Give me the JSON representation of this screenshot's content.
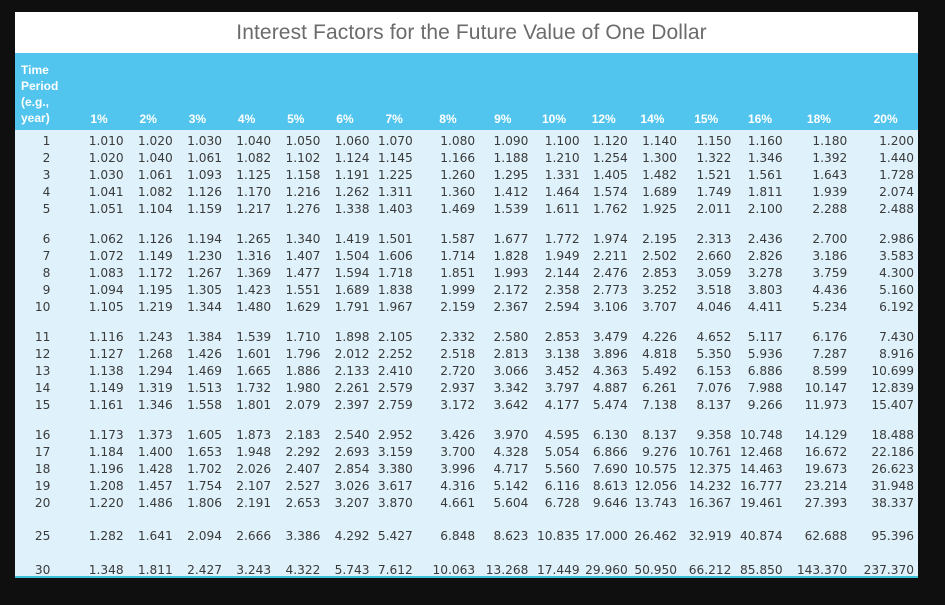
{
  "title": "Interest Factors for the Future Value of One Dollar",
  "colors": {
    "background": "#0f0f0f",
    "header_bg": "#52c5ee",
    "header_text": "#ffffff",
    "body_bg": "#dff2fb",
    "title_text": "#6b6b6b",
    "bottom_rule": "#3bc2da"
  },
  "header": {
    "time_label": [
      "Time",
      "Period",
      "(e.g.,",
      "year)"
    ],
    "rates": [
      "1%",
      "2%",
      "3%",
      "4%",
      "5%",
      "6%",
      "7%",
      "8%",
      "9%",
      "10%",
      "12%",
      "14%",
      "15%",
      "16%",
      "18%",
      "20%"
    ]
  },
  "rows": [
    {
      "period": "1",
      "values": [
        "1.010",
        "1.020",
        "1.030",
        "1.040",
        "1.050",
        "1.060",
        "1.070",
        "1.080",
        "1.090",
        "1.100",
        "1.120",
        "1.140",
        "1.150",
        "1.160",
        "1.180",
        "1.200"
      ]
    },
    {
      "period": "2",
      "values": [
        "1.020",
        "1.040",
        "1.061",
        "1.082",
        "1.102",
        "1.124",
        "1.145",
        "1.166",
        "1.188",
        "1.210",
        "1.254",
        "1.300",
        "1.322",
        "1.346",
        "1.392",
        "1.440"
      ]
    },
    {
      "period": "3",
      "values": [
        "1.030",
        "1.061",
        "1.093",
        "1.125",
        "1.158",
        "1.191",
        "1.225",
        "1.260",
        "1.295",
        "1.331",
        "1.405",
        "1.482",
        "1.521",
        "1.561",
        "1.643",
        "1.728"
      ]
    },
    {
      "period": "4",
      "values": [
        "1.041",
        "1.082",
        "1.126",
        "1.170",
        "1.216",
        "1.262",
        "1.311",
        "1.360",
        "1.412",
        "1.464",
        "1.574",
        "1.689",
        "1.749",
        "1.811",
        "1.939",
        "2.074"
      ]
    },
    {
      "period": "5",
      "values": [
        "1.051",
        "1.104",
        "1.159",
        "1.217",
        "1.276",
        "1.338",
        "1.403",
        "1.469",
        "1.539",
        "1.611",
        "1.762",
        "1.925",
        "2.011",
        "2.100",
        "2.288",
        "2.488"
      ]
    },
    {
      "period": "6",
      "values": [
        "1.062",
        "1.126",
        "1.194",
        "1.265",
        "1.340",
        "1.419",
        "1.501",
        "1.587",
        "1.677",
        "1.772",
        "1.974",
        "2.195",
        "2.313",
        "2.436",
        "2.700",
        "2.986"
      ]
    },
    {
      "period": "7",
      "values": [
        "1.072",
        "1.149",
        "1.230",
        "1.316",
        "1.407",
        "1.504",
        "1.606",
        "1.714",
        "1.828",
        "1.949",
        "2.211",
        "2.502",
        "2.660",
        "2.826",
        "3.186",
        "3.583"
      ]
    },
    {
      "period": "8",
      "values": [
        "1.083",
        "1.172",
        "1.267",
        "1.369",
        "1.477",
        "1.594",
        "1.718",
        "1.851",
        "1.993",
        "2.144",
        "2.476",
        "2.853",
        "3.059",
        "3.278",
        "3.759",
        "4.300"
      ]
    },
    {
      "period": "9",
      "values": [
        "1.094",
        "1.195",
        "1.305",
        "1.423",
        "1.551",
        "1.689",
        "1.838",
        "1.999",
        "2.172",
        "2.358",
        "2.773",
        "3.252",
        "3.518",
        "3.803",
        "4.436",
        "5.160"
      ]
    },
    {
      "period": "10",
      "values": [
        "1.105",
        "1.219",
        "1.344",
        "1.480",
        "1.629",
        "1.791",
        "1.967",
        "2.159",
        "2.367",
        "2.594",
        "3.106",
        "3.707",
        "4.046",
        "4.411",
        "5.234",
        "6.192"
      ]
    },
    {
      "period": "11",
      "values": [
        "1.116",
        "1.243",
        "1.384",
        "1.539",
        "1.710",
        "1.898",
        "2.105",
        "2.332",
        "2.580",
        "2.853",
        "3.479",
        "4.226",
        "4.652",
        "5.117",
        "6.176",
        "7.430"
      ]
    },
    {
      "period": "12",
      "values": [
        "1.127",
        "1.268",
        "1.426",
        "1.601",
        "1.796",
        "2.012",
        "2.252",
        "2.518",
        "2.813",
        "3.138",
        "3.896",
        "4.818",
        "5.350",
        "5.936",
        "7.287",
        "8.916"
      ]
    },
    {
      "period": "13",
      "values": [
        "1.138",
        "1.294",
        "1.469",
        "1.665",
        "1.886",
        "2.133",
        "2.410",
        "2.720",
        "3.066",
        "3.452",
        "4.363",
        "5.492",
        "6.153",
        "6.886",
        "8.599",
        "10.699"
      ]
    },
    {
      "period": "14",
      "values": [
        "1.149",
        "1.319",
        "1.513",
        "1.732",
        "1.980",
        "2.261",
        "2.579",
        "2.937",
        "3.342",
        "3.797",
        "4.887",
        "6.261",
        "7.076",
        "7.988",
        "10.147",
        "12.839"
      ]
    },
    {
      "period": "15",
      "values": [
        "1.161",
        "1.346",
        "1.558",
        "1.801",
        "2.079",
        "2.397",
        "2.759",
        "3.172",
        "3.642",
        "4.177",
        "5.474",
        "7.138",
        "8.137",
        "9.266",
        "11.973",
        "15.407"
      ]
    },
    {
      "period": "16",
      "values": [
        "1.173",
        "1.373",
        "1.605",
        "1.873",
        "2.183",
        "2.540",
        "2.952",
        "3.426",
        "3.970",
        "4.595",
        "6.130",
        "8.137",
        "9.358",
        "10.748",
        "14.129",
        "18.488"
      ]
    },
    {
      "period": "17",
      "values": [
        "1.184",
        "1.400",
        "1.653",
        "1.948",
        "2.292",
        "2.693",
        "3.159",
        "3.700",
        "4.328",
        "5.054",
        "6.866",
        "9.276",
        "10.761",
        "12.468",
        "16.672",
        "22.186"
      ]
    },
    {
      "period": "18",
      "values": [
        "1.196",
        "1.428",
        "1.702",
        "2.026",
        "2.407",
        "2.854",
        "3.380",
        "3.996",
        "4.717",
        "5.560",
        "7.690",
        "10.575",
        "12.375",
        "14.463",
        "19.673",
        "26.623"
      ]
    },
    {
      "period": "19",
      "values": [
        "1.208",
        "1.457",
        "1.754",
        "2.107",
        "2.527",
        "3.026",
        "3.617",
        "4.316",
        "5.142",
        "6.116",
        "8.613",
        "12.056",
        "14.232",
        "16.777",
        "23.214",
        "31.948"
      ]
    },
    {
      "period": "20",
      "values": [
        "1.220",
        "1.486",
        "1.806",
        "2.191",
        "2.653",
        "3.207",
        "3.870",
        "4.661",
        "5.604",
        "6.728",
        "9.646",
        "13.743",
        "16.367",
        "19.461",
        "27.393",
        "38.337"
      ]
    },
    {
      "period": "25",
      "values": [
        "1.282",
        "1.641",
        "2.094",
        "2.666",
        "3.386",
        "4.292",
        "5.427",
        "6.848",
        "8.623",
        "10.835",
        "17.000",
        "26.462",
        "32.919",
        "40.874",
        "62.688",
        "95.396"
      ]
    },
    {
      "period": "30",
      "values": [
        "1.348",
        "1.811",
        "2.427",
        "3.243",
        "4.322",
        "5.743",
        "7.612",
        "10.063",
        "13.268",
        "17.449",
        "29.960",
        "50.950",
        "66.212",
        "85.850",
        "143.370",
        "237.370"
      ]
    }
  ]
}
